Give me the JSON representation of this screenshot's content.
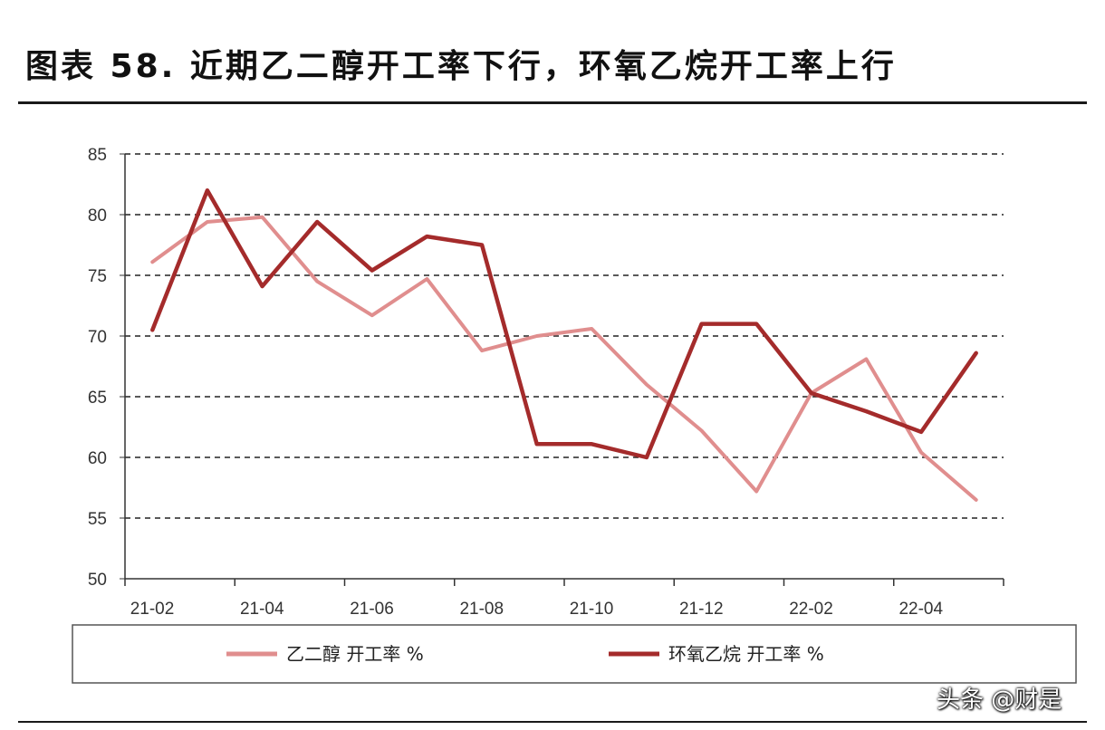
{
  "figure_title": "图表 58. 近期乙二醇开工率下行，环氧乙烷开工率上行",
  "watermark": "头条 @财是",
  "chart_data": {
    "type": "line",
    "x": [
      "21-02",
      "21-03",
      "21-04",
      "21-05",
      "21-06",
      "21-07",
      "21-08",
      "21-09",
      "21-10",
      "21-11",
      "21-12",
      "22-01",
      "22-02",
      "22-03",
      "22-04",
      "22-05"
    ],
    "x_tick_labels": [
      "21-02",
      "21-04",
      "21-06",
      "21-08",
      "21-10",
      "21-12",
      "22-02",
      "22-04"
    ],
    "ylim": [
      50,
      85
    ],
    "y_ticks": [
      50,
      55,
      60,
      65,
      70,
      75,
      80,
      85
    ],
    "grid": "horizontal dashed",
    "legend_position": "bottom",
    "series": [
      {
        "name": "乙二醇 开工率 %",
        "color": "#e08e8e",
        "values": [
          76.1,
          79.4,
          79.8,
          74.5,
          71.7,
          74.7,
          68.8,
          70.0,
          70.6,
          66.0,
          62.2,
          57.2,
          65.3,
          68.1,
          60.4,
          56.5
        ]
      },
      {
        "name": "环氧乙烷 开工率 %",
        "color": "#a42b2b",
        "values": [
          70.5,
          82.0,
          74.1,
          79.4,
          75.4,
          78.2,
          77.5,
          61.1,
          61.1,
          60.0,
          71.0,
          71.0,
          65.3,
          63.8,
          62.1,
          68.6
        ]
      }
    ]
  }
}
